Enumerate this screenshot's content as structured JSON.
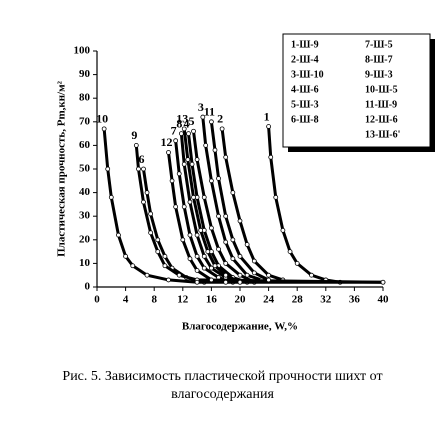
{
  "chart_data": {
    "type": "line",
    "xlabel": "Влагосодержание, W,%",
    "ylabel": "Пластическая прочность, Pm,кн/м²",
    "caption": "Рис. 5. Зависимость пластической прочности шихт от влагосодержания",
    "xlim": [
      0,
      40
    ],
    "xticks": [
      0,
      4,
      8,
      12,
      16,
      20,
      24,
      28,
      32,
      36,
      40
    ],
    "ylim": [
      0,
      100
    ],
    "yticks": [
      0,
      10,
      20,
      30,
      40,
      50,
      60,
      70,
      80,
      90,
      100
    ],
    "color": "#000000",
    "legend": "upper right",
    "series": [
      {
        "name": "1-Ш-9",
        "label": "1",
        "x": [
          24,
          24.3,
          25,
          26,
          27,
          28,
          30,
          32,
          34
        ],
        "values": [
          68,
          55,
          38,
          24,
          15,
          10,
          5,
          3,
          2
        ]
      },
      {
        "name": "2-Ш-4",
        "label": "2",
        "x": [
          17.5,
          18,
          19,
          20,
          21,
          22,
          24,
          26
        ],
        "values": [
          67,
          55,
          40,
          28,
          18,
          11,
          5,
          3
        ]
      },
      {
        "name": "3-Ш-10",
        "label": "3",
        "x": [
          14.8,
          15.2,
          16,
          17,
          18,
          19,
          21,
          23
        ],
        "values": [
          72,
          60,
          45,
          30,
          19,
          12,
          5,
          3
        ]
      },
      {
        "name": "4-Ш-6",
        "label": "4",
        "x": [
          12.8,
          13.3,
          14,
          15,
          16,
          17,
          19,
          21
        ],
        "values": [
          65,
          52,
          38,
          24,
          15,
          9,
          4,
          2
        ]
      },
      {
        "name": "5-Ш-3",
        "label": "5",
        "x": [
          13.5,
          14,
          15,
          16,
          17,
          18,
          20,
          22
        ],
        "values": [
          66,
          54,
          38,
          25,
          16,
          10,
          5,
          2
        ]
      },
      {
        "name": "6-Ш-8",
        "label": "6",
        "x": [
          6.5,
          7,
          7.5,
          8.5,
          9.5,
          10.5,
          12.5,
          15
        ],
        "values": [
          50,
          40,
          31,
          20,
          13,
          8,
          4,
          2
        ]
      },
      {
        "name": "7-Ш-5",
        "label": "7",
        "x": [
          11,
          11.5,
          12.2,
          13,
          14,
          15,
          17,
          19
        ],
        "values": [
          62,
          48,
          34,
          22,
          13,
          8,
          4,
          2
        ]
      },
      {
        "name": "8-Ш-7",
        "label": "8",
        "x": [
          11.8,
          12.2,
          13,
          14,
          15,
          16,
          18,
          20
        ],
        "values": [
          65,
          52,
          36,
          22,
          13,
          8,
          4,
          2
        ]
      },
      {
        "name": "9-Ш-3",
        "label": "9",
        "x": [
          5.5,
          5.8,
          6.5,
          7.5,
          8.5,
          9.5,
          11.5,
          14,
          40
        ],
        "values": [
          60,
          50,
          36,
          23,
          15,
          9,
          5,
          3,
          2
        ]
      },
      {
        "name": "10-Ш-5",
        "label": "10",
        "x": [
          1,
          1.5,
          2,
          3,
          4,
          5,
          7,
          10,
          14,
          40
        ],
        "values": [
          67,
          50,
          38,
          22,
          13,
          9,
          5,
          3,
          2,
          2
        ]
      },
      {
        "name": "11-Ш-9",
        "label": "11",
        "x": [
          16,
          16.5,
          17,
          18,
          19,
          20,
          22,
          24
        ],
        "values": [
          70,
          58,
          46,
          30,
          20,
          13,
          6,
          3
        ]
      },
      {
        "name": "12-Ш-6",
        "label": "12",
        "x": [
          10,
          10.5,
          11,
          12,
          13,
          14,
          16,
          18
        ],
        "values": [
          57,
          45,
          34,
          20,
          12,
          7,
          3,
          2
        ]
      },
      {
        "name": "13-Ш-6'",
        "label": "13",
        "x": [
          12.2,
          12.7,
          13.5,
          14.5,
          15.5,
          16.5,
          18,
          20
        ],
        "values": [
          67,
          54,
          38,
          24,
          15,
          9,
          5,
          2
        ]
      }
    ]
  }
}
